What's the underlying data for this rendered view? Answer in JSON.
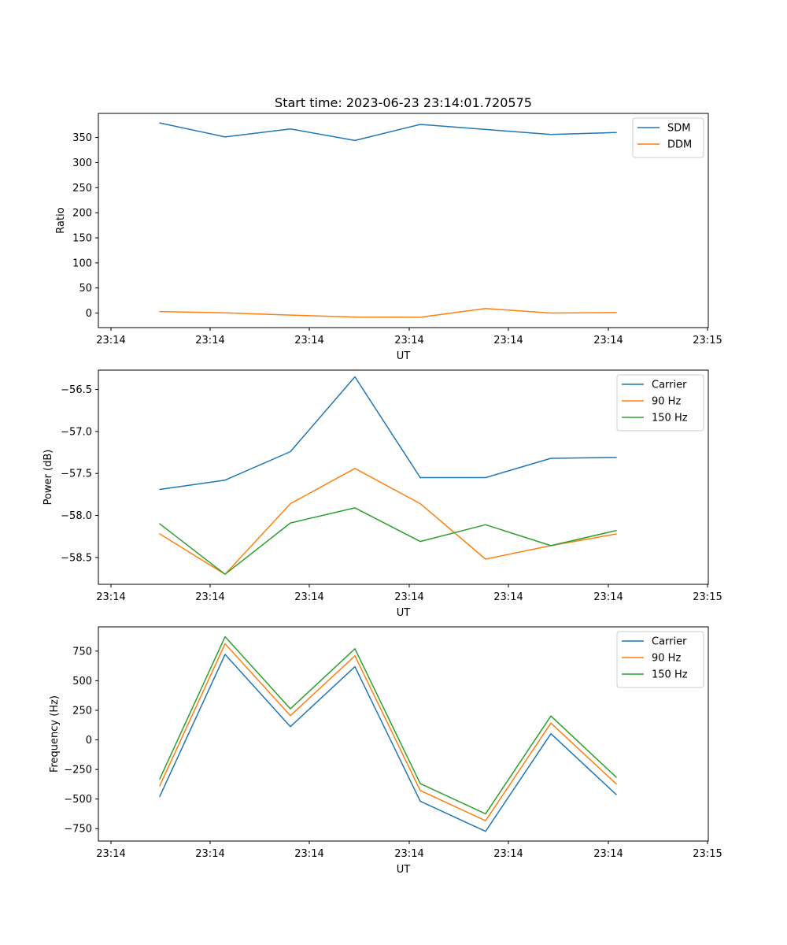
{
  "chart_data": [
    {
      "type": "line",
      "title": "Start time: 2023-06-23 23:14:01.720575",
      "xlabel": "UT",
      "ylabel": "Ratio",
      "x_tick_labels": [
        "23:14",
        "23:14",
        "23:14",
        "23:14",
        "23:14",
        "23:14",
        "23:14",
        "23:15"
      ],
      "y_ticks": [
        0,
        50,
        100,
        150,
        200,
        250,
        300,
        350
      ],
      "ylim": [
        -29,
        398
      ],
      "grid": false,
      "legend_position": "top-right",
      "series": [
        {
          "name": "SDM",
          "color": "#1f77b4",
          "values": [
            379,
            351,
            367,
            344,
            376,
            366,
            356,
            360
          ]
        },
        {
          "name": "DDM",
          "color": "#ff7f0e",
          "values": [
            3,
            0.5,
            -4,
            -8,
            -8.5,
            9,
            0,
            1
          ]
        }
      ]
    },
    {
      "type": "line",
      "title": "",
      "xlabel": "UT",
      "ylabel": "Power (dB)",
      "x_tick_labels": [
        "23:14",
        "23:14",
        "23:14",
        "23:14",
        "23:14",
        "23:14",
        "23:14",
        "23:15"
      ],
      "y_ticks": [
        -58.5,
        -58.0,
        -57.5,
        -57.0,
        -56.5
      ],
      "y_tick_labels": [
        "−58.5",
        "−58.0",
        "−57.5",
        "−57.0",
        "−56.5"
      ],
      "ylim": [
        -58.82,
        -56.27
      ],
      "grid": false,
      "legend_position": "top-right",
      "series": [
        {
          "name": "Carrier",
          "color": "#1f77b4",
          "values": [
            -57.69,
            -57.58,
            -57.24,
            -56.35,
            -57.55,
            -57.55,
            -57.32,
            -57.31
          ]
        },
        {
          "name": "90 Hz",
          "color": "#ff7f0e",
          "values": [
            -58.22,
            -58.7,
            -57.86,
            -57.44,
            -57.86,
            -58.52,
            -58.36,
            -58.22
          ]
        },
        {
          "name": "150 Hz",
          "color": "#2ca02c",
          "values": [
            -58.1,
            -58.7,
            -58.09,
            -57.91,
            -58.31,
            -58.11,
            -58.36,
            -58.18
          ]
        }
      ]
    },
    {
      "type": "line",
      "title": "",
      "xlabel": "UT",
      "ylabel": "Frequency (Hz)",
      "x_tick_labels": [
        "23:14",
        "23:14",
        "23:14",
        "23:14",
        "23:14",
        "23:14",
        "23:14",
        "23:15"
      ],
      "y_ticks": [
        -750,
        -500,
        -250,
        0,
        250,
        500,
        750
      ],
      "y_tick_labels": [
        "−750",
        "−500",
        "−250",
        "0",
        "250",
        "500",
        "750"
      ],
      "ylim": [
        -855,
        955
      ],
      "grid": false,
      "legend_position": "top-right",
      "series": [
        {
          "name": "Carrier",
          "color": "#1f77b4",
          "values": [
            -478,
            722,
            112,
            618,
            -518,
            -773,
            52,
            -462
          ]
        },
        {
          "name": "90 Hz",
          "color": "#ff7f0e",
          "values": [
            -388,
            812,
            205,
            710,
            -428,
            -683,
            142,
            -372
          ]
        },
        {
          "name": "150 Hz",
          "color": "#2ca02c",
          "values": [
            -330,
            872,
            262,
            770,
            -370,
            -625,
            202,
            -315
          ]
        }
      ]
    }
  ]
}
